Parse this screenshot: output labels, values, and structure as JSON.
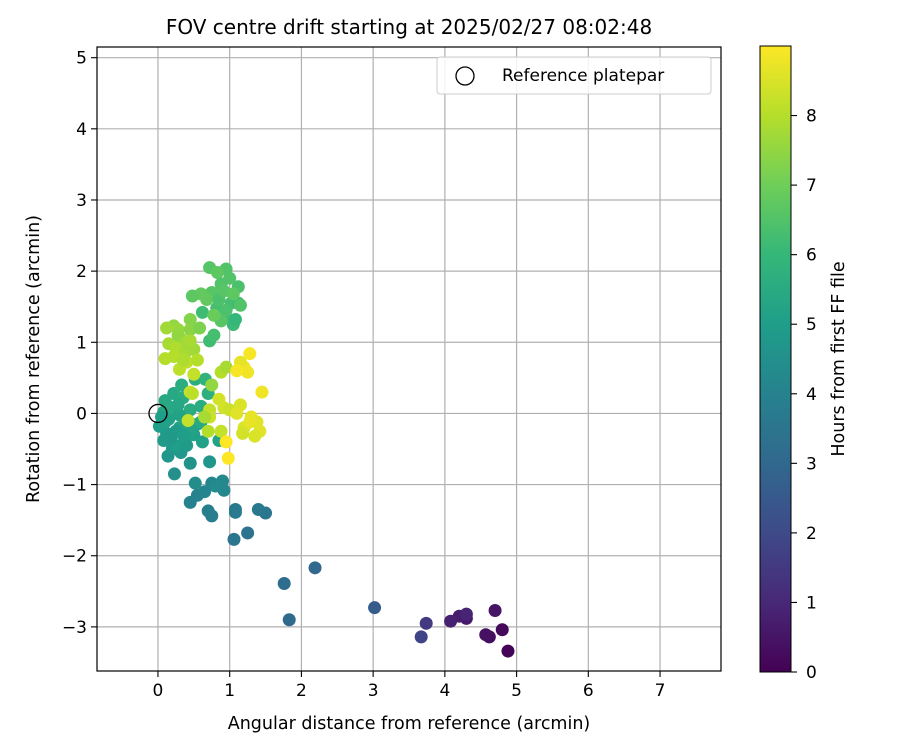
{
  "chart_data": {
    "type": "scatter",
    "title": "FOV centre drift starting at 2025/02/27 08:02:48",
    "xlabel": "Angular distance from reference (arcmin)",
    "ylabel": "Rotation from reference (arcmin)",
    "xlim": [
      -0.85,
      7.85
    ],
    "ylim": [
      -3.62,
      5.15
    ],
    "xticks": [
      "0",
      "1",
      "2",
      "3",
      "4",
      "5",
      "6",
      "7"
    ],
    "yticks": [
      "−3",
      "−2",
      "−1",
      "0",
      "1",
      "2",
      "3",
      "4",
      "5"
    ],
    "grid": true,
    "legend": {
      "position": "top-right",
      "entries": [
        "Reference platepar"
      ]
    },
    "reference_point": {
      "x": 0,
      "y": 0,
      "marker": "open-circle"
    },
    "colorbar": {
      "label": "Hours from first FF file",
      "colormap": "viridis",
      "range": [
        0,
        9
      ],
      "ticks": [
        "0",
        "1",
        "2",
        "3",
        "4",
        "5",
        "6",
        "7",
        "8"
      ]
    },
    "points": [
      {
        "x": 4.88,
        "y": -3.34,
        "h": 0.1
      },
      {
        "x": 4.8,
        "y": -3.04,
        "h": 0.2
      },
      {
        "x": 4.62,
        "y": -3.14,
        "h": 0.3
      },
      {
        "x": 4.57,
        "y": -3.11,
        "h": 0.4
      },
      {
        "x": 4.7,
        "y": -2.77,
        "h": 0.5
      },
      {
        "x": 4.3,
        "y": -2.88,
        "h": 0.6
      },
      {
        "x": 4.2,
        "y": -2.85,
        "h": 0.7
      },
      {
        "x": 4.08,
        "y": -2.92,
        "h": 0.8
      },
      {
        "x": 4.3,
        "y": -2.82,
        "h": 0.9
      },
      {
        "x": 3.74,
        "y": -2.95,
        "h": 1.5
      },
      {
        "x": 3.67,
        "y": -3.14,
        "h": 1.8
      },
      {
        "x": 3.02,
        "y": -2.73,
        "h": 2.6
      },
      {
        "x": 2.19,
        "y": -2.17,
        "h": 3.0
      },
      {
        "x": 1.83,
        "y": -2.9,
        "h": 3.1
      },
      {
        "x": 1.76,
        "y": -2.39,
        "h": 3.2
      },
      {
        "x": 1.25,
        "y": -1.68,
        "h": 3.4
      },
      {
        "x": 1.06,
        "y": -1.77,
        "h": 3.5
      },
      {
        "x": 1.5,
        "y": -1.4,
        "h": 3.5
      },
      {
        "x": 1.4,
        "y": -1.35,
        "h": 3.6
      },
      {
        "x": 1.08,
        "y": -1.35,
        "h": 3.6
      },
      {
        "x": 1.08,
        "y": -1.39,
        "h": 3.7
      },
      {
        "x": 0.75,
        "y": -1.44,
        "h": 3.8
      },
      {
        "x": 0.7,
        "y": -1.37,
        "h": 3.9
      },
      {
        "x": 0.45,
        "y": -1.25,
        "h": 4.0
      },
      {
        "x": 0.55,
        "y": -1.15,
        "h": 4.0
      },
      {
        "x": 0.65,
        "y": -1.1,
        "h": 4.1
      },
      {
        "x": 0.75,
        "y": -0.98,
        "h": 4.1
      },
      {
        "x": 0.9,
        "y": -0.95,
        "h": 4.2
      },
      {
        "x": 0.92,
        "y": -1.08,
        "h": 4.2
      },
      {
        "x": 0.8,
        "y": -1.02,
        "h": 4.3
      },
      {
        "x": 0.52,
        "y": -0.98,
        "h": 4.4
      },
      {
        "x": 0.23,
        "y": -0.85,
        "h": 4.5
      },
      {
        "x": 0.45,
        "y": -0.7,
        "h": 4.6
      },
      {
        "x": 0.72,
        "y": -0.68,
        "h": 4.7
      },
      {
        "x": 0.14,
        "y": -0.6,
        "h": 4.7
      },
      {
        "x": 0.2,
        "y": -0.5,
        "h": 4.8
      },
      {
        "x": 0.32,
        "y": -0.55,
        "h": 4.8
      },
      {
        "x": 0.08,
        "y": -0.38,
        "h": 4.9
      },
      {
        "x": 0.12,
        "y": -0.28,
        "h": 4.9
      },
      {
        "x": 0.25,
        "y": -0.45,
        "h": 5.0
      },
      {
        "x": 0.38,
        "y": -0.38,
        "h": 5.0
      },
      {
        "x": 0.02,
        "y": -0.18,
        "h": 5.0
      },
      {
        "x": 0.5,
        "y": -0.3,
        "h": 5.1
      },
      {
        "x": 0.62,
        "y": -0.4,
        "h": 5.1
      },
      {
        "x": 0.85,
        "y": -0.38,
        "h": 5.2
      },
      {
        "x": 0.3,
        "y": -0.2,
        "h": 5.2
      },
      {
        "x": 0.15,
        "y": -0.08,
        "h": 5.2
      },
      {
        "x": 0.08,
        "y": 0.02,
        "h": 5.3
      },
      {
        "x": 0.4,
        "y": -0.1,
        "h": 5.3
      },
      {
        "x": 0.55,
        "y": -0.15,
        "h": 5.3
      },
      {
        "x": 0.2,
        "y": 0.08,
        "h": 5.4
      },
      {
        "x": 0.1,
        "y": 0.18,
        "h": 5.4
      },
      {
        "x": 0.22,
        "y": 0.28,
        "h": 5.4
      },
      {
        "x": 0.35,
        "y": 0.22,
        "h": 5.5
      },
      {
        "x": 0.6,
        "y": 0.1,
        "h": 5.5
      },
      {
        "x": 0.45,
        "y": 0.05,
        "h": 5.5
      },
      {
        "x": 0.33,
        "y": 0.4,
        "h": 5.6
      },
      {
        "x": 0.52,
        "y": 0.48,
        "h": 5.6
      },
      {
        "x": 0.7,
        "y": 0.28,
        "h": 5.7
      },
      {
        "x": 0.66,
        "y": 0.48,
        "h": 5.8
      },
      {
        "x": 0.25,
        "y": -0.25,
        "h": 4.9
      },
      {
        "x": 0.18,
        "y": -0.35,
        "h": 4.8
      },
      {
        "x": 0.4,
        "y": -0.45,
        "h": 4.9
      },
      {
        "x": 0.3,
        "y": -0.02,
        "h": 5.2
      },
      {
        "x": 0.1,
        "y": -0.12,
        "h": 5.1
      },
      {
        "x": 0.28,
        "y": 0.12,
        "h": 5.3
      },
      {
        "x": 0.48,
        "y": -0.22,
        "h": 5.2
      },
      {
        "x": 0.05,
        "y": -0.05,
        "h": 5.0
      },
      {
        "x": 0.6,
        "y": -0.12,
        "h": 5.4
      },
      {
        "x": 0.35,
        "y": -0.3,
        "h": 5.0
      },
      {
        "x": 0.72,
        "y": 1.02,
        "h": 6.2
      },
      {
        "x": 0.78,
        "y": 1.1,
        "h": 6.3
      },
      {
        "x": 0.62,
        "y": 1.42,
        "h": 6.2
      },
      {
        "x": 0.82,
        "y": 1.48,
        "h": 6.3
      },
      {
        "x": 0.95,
        "y": 1.35,
        "h": 6.2
      },
      {
        "x": 1.05,
        "y": 1.25,
        "h": 6.1
      },
      {
        "x": 1.08,
        "y": 1.32,
        "h": 6.0
      },
      {
        "x": 1.02,
        "y": 1.55,
        "h": 6.3
      },
      {
        "x": 1.12,
        "y": 1.55,
        "h": 6.2
      },
      {
        "x": 1.12,
        "y": 1.78,
        "h": 6.4
      },
      {
        "x": 1.0,
        "y": 1.9,
        "h": 6.5
      },
      {
        "x": 0.95,
        "y": 2.03,
        "h": 6.5
      },
      {
        "x": 0.72,
        "y": 2.05,
        "h": 6.6
      },
      {
        "x": 0.83,
        "y": 1.98,
        "h": 6.7
      },
      {
        "x": 0.88,
        "y": 1.82,
        "h": 6.5
      },
      {
        "x": 0.75,
        "y": 1.7,
        "h": 6.6
      },
      {
        "x": 0.6,
        "y": 1.68,
        "h": 6.8
      },
      {
        "x": 0.48,
        "y": 1.65,
        "h": 6.7
      },
      {
        "x": 0.68,
        "y": 1.6,
        "h": 6.8
      },
      {
        "x": 0.85,
        "y": 1.6,
        "h": 6.4
      },
      {
        "x": 0.92,
        "y": 1.72,
        "h": 6.6
      },
      {
        "x": 1.05,
        "y": 1.68,
        "h": 6.7
      },
      {
        "x": 0.95,
        "y": 1.45,
        "h": 6.4
      },
      {
        "x": 0.88,
        "y": 1.3,
        "h": 6.6
      },
      {
        "x": 0.78,
        "y": 1.38,
        "h": 6.9
      },
      {
        "x": 1.15,
        "y": 1.52,
        "h": 6.5
      },
      {
        "x": 0.22,
        "y": 1.23,
        "h": 7.5
      },
      {
        "x": 0.28,
        "y": 1.18,
        "h": 7.6
      },
      {
        "x": 0.12,
        "y": 1.2,
        "h": 7.7
      },
      {
        "x": 0.45,
        "y": 1.32,
        "h": 7.3
      },
      {
        "x": 0.45,
        "y": 1.18,
        "h": 7.4
      },
      {
        "x": 0.58,
        "y": 1.2,
        "h": 7.2
      },
      {
        "x": 0.32,
        "y": 1.05,
        "h": 7.6
      },
      {
        "x": 0.15,
        "y": 0.98,
        "h": 7.8
      },
      {
        "x": 0.25,
        "y": 0.92,
        "h": 7.9
      },
      {
        "x": 0.38,
        "y": 0.85,
        "h": 7.8
      },
      {
        "x": 0.5,
        "y": 0.9,
        "h": 7.7
      },
      {
        "x": 0.22,
        "y": 0.8,
        "h": 8.0
      },
      {
        "x": 0.1,
        "y": 0.77,
        "h": 8.0
      },
      {
        "x": 0.4,
        "y": 0.72,
        "h": 8.1
      },
      {
        "x": 0.55,
        "y": 0.75,
        "h": 8.0
      },
      {
        "x": 0.3,
        "y": 0.62,
        "h": 8.1
      },
      {
        "x": 0.5,
        "y": 0.55,
        "h": 8.2
      },
      {
        "x": 0.28,
        "y": 1.1,
        "h": 7.5
      },
      {
        "x": 0.4,
        "y": 1.0,
        "h": 7.7
      },
      {
        "x": 0.35,
        "y": 0.75,
        "h": 7.9
      },
      {
        "x": 0.75,
        "y": 0.4,
        "h": 7.5
      },
      {
        "x": 0.88,
        "y": 0.58,
        "h": 8.0
      },
      {
        "x": 0.95,
        "y": 0.65,
        "h": 7.8
      },
      {
        "x": 0.85,
        "y": 0.2,
        "h": 8.4
      },
      {
        "x": 0.92,
        "y": 0.08,
        "h": 8.4
      },
      {
        "x": 1.0,
        "y": 0.05,
        "h": 8.3
      },
      {
        "x": 1.15,
        "y": 0.12,
        "h": 8.5
      },
      {
        "x": 1.1,
        "y": 0.0,
        "h": 8.6
      },
      {
        "x": 0.72,
        "y": 0.05,
        "h": 8.2
      },
      {
        "x": 0.72,
        "y": -0.05,
        "h": 8.3
      },
      {
        "x": 0.7,
        "y": -0.25,
        "h": 8.0
      },
      {
        "x": 0.88,
        "y": -0.25,
        "h": 8.2
      },
      {
        "x": 0.95,
        "y": -0.4,
        "h": 9.0
      },
      {
        "x": 0.98,
        "y": -0.63,
        "h": 9.0
      },
      {
        "x": 1.2,
        "y": 0.65,
        "h": 8.8
      },
      {
        "x": 1.28,
        "y": 0.84,
        "h": 8.9
      },
      {
        "x": 1.15,
        "y": 0.72,
        "h": 8.7
      },
      {
        "x": 1.25,
        "y": 0.58,
        "h": 8.8
      },
      {
        "x": 1.45,
        "y": 0.3,
        "h": 8.8
      },
      {
        "x": 1.3,
        "y": -0.05,
        "h": 8.7
      },
      {
        "x": 1.38,
        "y": -0.12,
        "h": 8.6
      },
      {
        "x": 1.2,
        "y": -0.2,
        "h": 8.5
      },
      {
        "x": 1.42,
        "y": -0.25,
        "h": 8.6
      },
      {
        "x": 1.35,
        "y": -0.32,
        "h": 8.5
      },
      {
        "x": 1.18,
        "y": -0.28,
        "h": 8.4
      },
      {
        "x": 1.28,
        "y": -0.12,
        "h": 8.7
      },
      {
        "x": 1.1,
        "y": 0.6,
        "h": 8.9
      },
      {
        "x": 0.45,
        "y": 0.3,
        "h": 8.3
      },
      {
        "x": 0.48,
        "y": 0.28,
        "h": 8.1
      },
      {
        "x": 0.45,
        "y": 1.02,
        "h": 7.8
      },
      {
        "x": 0.65,
        "y": -0.05,
        "h": 7.8
      },
      {
        "x": 0.42,
        "y": -0.1,
        "h": 8.2
      }
    ]
  }
}
